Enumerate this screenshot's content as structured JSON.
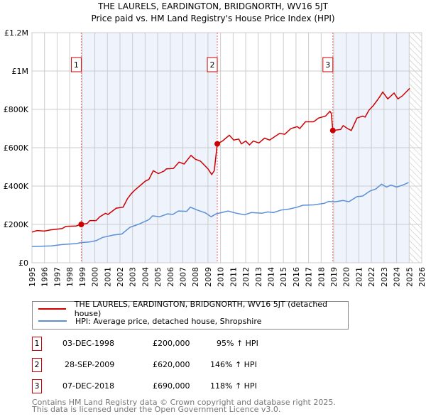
{
  "chart_data": {
    "type": "line",
    "title": "THE LAURELS, EARDINGTON, BRIDGNORTH, WV16 5JT",
    "subtitle": "Price paid vs. HM Land Registry's House Price Index (HPI)",
    "xlim": [
      1995,
      2026
    ],
    "ylim": [
      0,
      1200000
    ],
    "x_ticks": [
      "1995",
      "1996",
      "1997",
      "1998",
      "1999",
      "2000",
      "2001",
      "2002",
      "2003",
      "2004",
      "2005",
      "2006",
      "2007",
      "2008",
      "2009",
      "2010",
      "2011",
      "2012",
      "2013",
      "2014",
      "2015",
      "2016",
      "2017",
      "2018",
      "2019",
      "2020",
      "2021",
      "2022",
      "2023",
      "2024",
      "2025",
      "2026"
    ],
    "y_ticks": [
      {
        "v": 0,
        "label": "£0"
      },
      {
        "v": 200000,
        "label": "£200K"
      },
      {
        "v": 400000,
        "label": "£400K"
      },
      {
        "v": 600000,
        "label": "£600K"
      },
      {
        "v": 800000,
        "label": "£800K"
      },
      {
        "v": 1000000,
        "label": "£1M"
      },
      {
        "v": 1200000,
        "label": "£1.2M"
      }
    ],
    "grid": true,
    "series": [
      {
        "name": "THE LAURELS, EARDINGTON, BRIDGNORTH, WV16 5JT (detached house)",
        "color": "#cc0000",
        "x": [
          1995,
          1995.4,
          1996,
          1996.5,
          1997.4,
          1997.7,
          1998.5,
          1998.92,
          1999.4,
          1999.6,
          2000.1,
          2000.4,
          2000.85,
          2001.05,
          2001.7,
          2002.25,
          2002.6,
          2002.9,
          2003.2,
          2004.0,
          2004.3,
          2004.65,
          2005.05,
          2005.5,
          2005.7,
          2006.25,
          2006.7,
          2007.1,
          2007.65,
          2008.0,
          2008.4,
          2009.0,
          2009.3,
          2009.5,
          2009.74,
          2010.15,
          2010.7,
          2011.05,
          2011.45,
          2011.65,
          2012.0,
          2012.3,
          2012.6,
          2013.05,
          2013.5,
          2013.9,
          2014.7,
          2015.1,
          2015.6,
          2016.1,
          2016.3,
          2016.75,
          2017.4,
          2017.8,
          2018.35,
          2018.7,
          2018.8,
          2018.93,
          2019.55,
          2019.75,
          2020.1,
          2020.4,
          2020.85,
          2021.3,
          2021.5,
          2021.8,
          2022.15,
          2022.6,
          2022.9,
          2023.3,
          2023.8,
          2024.1,
          2024.45,
          2025.05
        ],
        "y": [
          160000,
          168000,
          165000,
          172000,
          178000,
          190000,
          192000,
          200000,
          205000,
          220000,
          220000,
          240000,
          258000,
          252000,
          285000,
          290000,
          335000,
          360000,
          380000,
          425000,
          435000,
          480000,
          465000,
          478000,
          490000,
          492000,
          525000,
          515000,
          560000,
          540000,
          530000,
          490000,
          460000,
          480000,
          620000,
          635000,
          665000,
          640000,
          645000,
          620000,
          635000,
          615000,
          635000,
          625000,
          650000,
          640000,
          675000,
          670000,
          700000,
          710000,
          700000,
          735000,
          735000,
          755000,
          765000,
          790000,
          780000,
          690000,
          695000,
          715000,
          700000,
          690000,
          755000,
          765000,
          760000,
          795000,
          820000,
          860000,
          890000,
          855000,
          885000,
          855000,
          870000,
          910000
        ]
      },
      {
        "name": "HPI: Average price, detached house, Shropshire",
        "color": "#5b8fd6",
        "x": [
          1995,
          1996.55,
          1997.4,
          1998.5,
          1998.9,
          1999.55,
          2000.1,
          2000.6,
          2001.5,
          2002.15,
          2002.8,
          2003.45,
          2004.3,
          2004.6,
          2005.15,
          2005.8,
          2006.2,
          2006.65,
          2007.3,
          2007.6,
          2008.15,
          2008.8,
          2009.25,
          2009.65,
          2010.6,
          2011.15,
          2011.9,
          2012.45,
          2013.3,
          2013.75,
          2014.2,
          2014.8,
          2015.45,
          2016.1,
          2016.55,
          2017.4,
          2018.25,
          2018.6,
          2019.1,
          2019.75,
          2020.2,
          2020.85,
          2021.3,
          2021.9,
          2022.35,
          2022.8,
          2023.2,
          2023.55,
          2024.0,
          2024.5,
          2024.95
        ],
        "y": [
          85000,
          88000,
          95000,
          100000,
          105000,
          108000,
          115000,
          132000,
          145000,
          150000,
          185000,
          200000,
          225000,
          245000,
          240000,
          255000,
          252000,
          270000,
          268000,
          290000,
          275000,
          260000,
          240000,
          255000,
          270000,
          260000,
          250000,
          262000,
          258000,
          265000,
          262000,
          275000,
          280000,
          290000,
          300000,
          302000,
          310000,
          320000,
          318000,
          325000,
          318000,
          345000,
          348000,
          375000,
          385000,
          410000,
          395000,
          405000,
          395000,
          405000,
          418000
        ]
      }
    ],
    "sales": [
      {
        "label": "1",
        "x": 1998.92,
        "y": 200000
      },
      {
        "label": "2",
        "x": 2009.74,
        "y": 620000
      },
      {
        "label": "3",
        "x": 2018.93,
        "y": 690000
      }
    ],
    "shaded_ranges": [
      [
        1998.92,
        2009.74
      ],
      [
        2018.93,
        2025.0
      ]
    ],
    "forecast_hatch_from": 2025.0,
    "legend_placement": "below"
  },
  "legend": {
    "items": [
      "THE LAURELS, EARDINGTON, BRIDGNORTH, WV16 5JT (detached house)",
      "HPI: Average price, detached house, Shropshire"
    ]
  },
  "table": [
    {
      "num": "1",
      "date": "03-DEC-1998",
      "price": "£200,000",
      "hpi": "95% ↑ HPI"
    },
    {
      "num": "2",
      "date": "28-SEP-2009",
      "price": "£620,000",
      "hpi": "146% ↑ HPI"
    },
    {
      "num": "3",
      "date": "07-DEC-2018",
      "price": "£690,000",
      "hpi": "118% ↑ HPI"
    }
  ],
  "footer": {
    "line1": "Contains HM Land Registry data © Crown copyright and database right 2025.",
    "line2": "This data is licensed under the Open Government Licence v3.0."
  }
}
